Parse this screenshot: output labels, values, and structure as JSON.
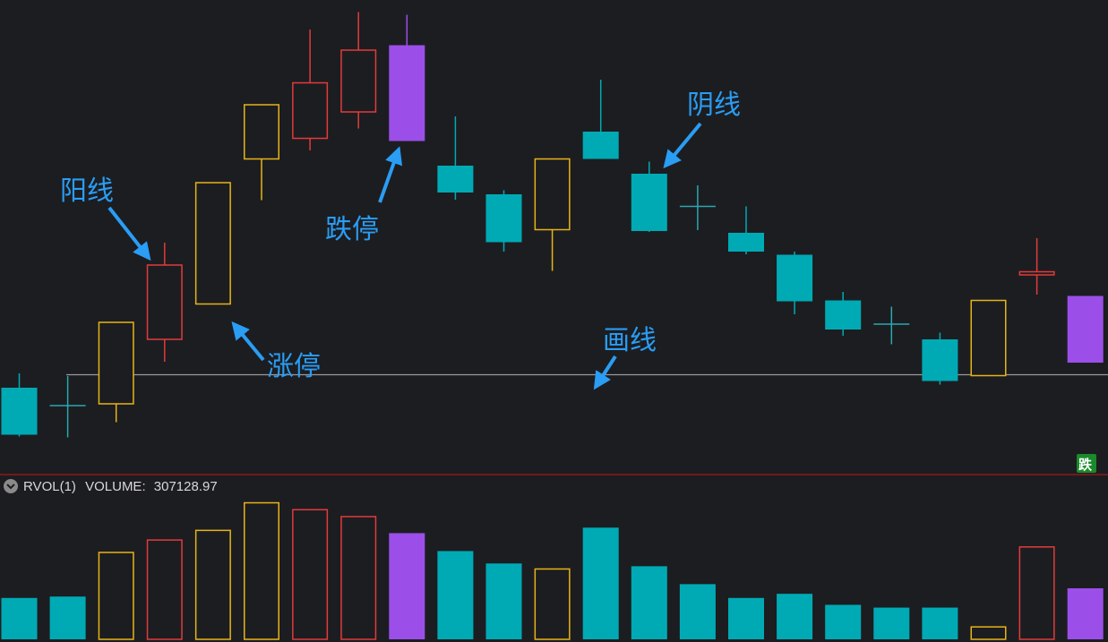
{
  "chart_data": {
    "type": "candlestick",
    "volume_indicator_label": "RVOL(1)",
    "volume_readout_label": "VOLUME:",
    "volume_readout_value": "307128.97",
    "badge_text": "跌",
    "colors": {
      "background": "#1c1d21",
      "up_candle": "#e23b3b",
      "limit_up_candle": "#e6b417",
      "down_candle": "#00aab4",
      "limit_down_candle": "#9b4fe8",
      "doji_down": "#2aa8b0",
      "horizontal_line": "#9a9a9a",
      "separator": "#8b1a1a",
      "annotation": "#2a9df4",
      "badge_bg": "#1a8a2a"
    },
    "price_range": [
      0,
      100
    ],
    "volume_range": [
      0,
      100
    ],
    "candles": [
      {
        "kind": "down",
        "open": 15.0,
        "close": 4.5,
        "high": 18.2,
        "low": 4.1
      },
      {
        "kind": "doji-down",
        "open": 11.0,
        "close": 11.0,
        "high": 17.6,
        "low": 3.9
      },
      {
        "kind": "limit-up",
        "open": 11.4,
        "close": 29.6,
        "high": 29.6,
        "low": 7.3
      },
      {
        "kind": "up",
        "open": 25.8,
        "close": 42.4,
        "high": 47.4,
        "low": 20.8
      },
      {
        "kind": "limit-up",
        "open": 33.7,
        "close": 60.8,
        "high": 60.8,
        "low": 33.7
      },
      {
        "kind": "limit-up",
        "open": 66.1,
        "close": 78.2,
        "high": 78.2,
        "low": 56.9
      },
      {
        "kind": "up",
        "open": 70.7,
        "close": 83.1,
        "high": 95.0,
        "low": 68.0
      },
      {
        "kind": "up",
        "open": 76.6,
        "close": 90.4,
        "high": 98.9,
        "low": 72.9
      },
      {
        "kind": "limit-down",
        "open": 91.5,
        "close": 70.1,
        "high": 98.3,
        "low": 70.1
      },
      {
        "kind": "down",
        "open": 64.6,
        "close": 58.6,
        "high": 75.6,
        "low": 57.0
      },
      {
        "kind": "down",
        "open": 58.2,
        "close": 47.5,
        "high": 59.1,
        "low": 45.4
      },
      {
        "kind": "limit-up",
        "open": 50.3,
        "close": 66.1,
        "high": 66.1,
        "low": 41.1
      },
      {
        "kind": "down",
        "open": 72.2,
        "close": 66.1,
        "high": 83.8,
        "low": 66.1
      },
      {
        "kind": "down",
        "open": 62.8,
        "close": 50.0,
        "high": 65.5,
        "low": 49.8
      },
      {
        "kind": "doji-down",
        "open": 55.5,
        "close": 53.4,
        "high": 60.2,
        "low": 50.2
      },
      {
        "kind": "down",
        "open": 49.6,
        "close": 45.4,
        "high": 55.5,
        "low": 44.8
      },
      {
        "kind": "down",
        "open": 44.7,
        "close": 34.3,
        "high": 45.4,
        "low": 31.4
      },
      {
        "kind": "down",
        "open": 34.5,
        "close": 28.0,
        "high": 36.4,
        "low": 26.6
      },
      {
        "kind": "doji-down",
        "open": 29.2,
        "close": 29.2,
        "high": 33.1,
        "low": 24.7
      },
      {
        "kind": "down",
        "open": 25.8,
        "close": 16.5,
        "high": 27.3,
        "low": 15.7
      },
      {
        "kind": "limit-up",
        "open": 17.7,
        "close": 34.5,
        "high": 34.5,
        "low": 17.7
      },
      {
        "kind": "doji-up",
        "open": 40.9,
        "close": 40.2,
        "high": 48.4,
        "low": 35.8
      },
      {
        "kind": "limit-down",
        "open": 35.5,
        "close": 20.6,
        "high": 35.5,
        "low": 20.6
      }
    ],
    "horizontal_line_price": 17.9,
    "volumes": [
      30,
      31,
      63,
      72,
      79,
      99,
      94,
      89,
      77,
      64,
      55,
      51,
      81,
      53,
      40,
      30,
      33,
      25,
      23,
      23,
      9,
      67,
      37
    ],
    "annotations": [
      {
        "text": "阳线",
        "target_candle": 3
      },
      {
        "text": "涨停",
        "target_candle": 4
      },
      {
        "text": "跌停",
        "target_candle": 8
      },
      {
        "text": "阴线",
        "target_candle": 13
      },
      {
        "text": "画线",
        "target": "horizontal_line"
      }
    ]
  }
}
